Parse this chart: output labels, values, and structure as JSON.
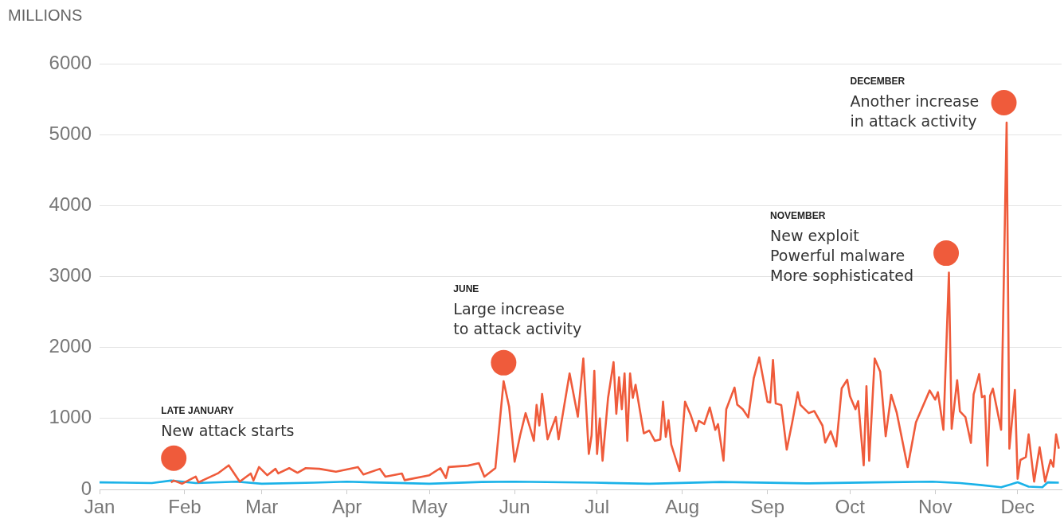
{
  "chart_data": {
    "type": "line",
    "ylabel": "MILLIONS",
    "xlim": [
      "--01-01",
      "--12-17"
    ],
    "ylim": [
      0,
      6000
    ],
    "yticks": [
      0,
      1000,
      2000,
      3000,
      4000,
      5000,
      6000
    ],
    "xticks": [
      {
        "value": "--01-01",
        "label": "Jan"
      },
      {
        "value": "--02-01",
        "label": "Feb"
      },
      {
        "value": "--03-01",
        "label": "Mar"
      },
      {
        "value": "--04-01",
        "label": "Apr"
      },
      {
        "value": "--05-01",
        "label": "May"
      },
      {
        "value": "--06-01",
        "label": "Jun"
      },
      {
        "value": "--07-01",
        "label": "Jul"
      },
      {
        "value": "--08-01",
        "label": "Aug"
      },
      {
        "value": "--09-01",
        "label": "Sep"
      },
      {
        "value": "--10-01",
        "label": "Oct"
      },
      {
        "value": "--11-01",
        "label": "Nov"
      },
      {
        "value": "--12-01",
        "label": "Dec"
      }
    ],
    "grid": "y",
    "legend": false,
    "marker": "none",
    "line_style": "solid",
    "series": [
      {
        "color": "#ef5b3b",
        "x": [
          "--01-27",
          "--01-28",
          "--01-31",
          "--02-05",
          "--02-06",
          "--02-13",
          "--02-17",
          "--02-21",
          "--02-25",
          "--02-26",
          "--02-28",
          "--03-03",
          "--03-06",
          "--03-07",
          "--03-11",
          "--03-14",
          "--03-17",
          "--03-22",
          "--03-28",
          "--04-05",
          "--04-07",
          "--04-13",
          "--04-15",
          "--04-21",
          "--04-22",
          "--05-01",
          "--05-05",
          "--05-07",
          "--05-08",
          "--05-15",
          "--05-19",
          "--05-21",
          "--05-25",
          "--05-28",
          "--05-30",
          "--06-01",
          "--06-03",
          "--06-05",
          "--06-07",
          "--06-08",
          "--06-09",
          "--06-10",
          "--06-11",
          "--06-13",
          "--06-16",
          "--06-17",
          "--06-21",
          "--06-24",
          "--06-26",
          "--06-28",
          "--06-29",
          "--06-30",
          "--07-01",
          "--07-02",
          "--07-03",
          "--07-05",
          "--07-07",
          "--07-08",
          "--07-09",
          "--07-10",
          "--07-11",
          "--07-12",
          "--07-13",
          "--07-14",
          "--07-15",
          "--07-18",
          "--07-20",
          "--07-22",
          "--07-24",
          "--07-25",
          "--07-26",
          "--07-27",
          "--07-28",
          "--07-31",
          "--08-02",
          "--08-04",
          "--08-06",
          "--08-07",
          "--08-09",
          "--08-11",
          "--08-13",
          "--08-14",
          "--08-16",
          "--08-17",
          "--08-20",
          "--08-21",
          "--08-23",
          "--08-25",
          "--08-27",
          "--08-29",
          "--09-01",
          "--09-02",
          "--09-03",
          "--09-04",
          "--09-06",
          "--09-08",
          "--09-10",
          "--09-12",
          "--09-13",
          "--09-16",
          "--09-18",
          "--09-21",
          "--09-22",
          "--09-24",
          "--09-26",
          "--09-28",
          "--09-30",
          "--10-01",
          "--10-03",
          "--10-04",
          "--10-06",
          "--10-07",
          "--10-08",
          "--10-10",
          "--10-12",
          "--10-14",
          "--10-16",
          "--10-18",
          "--10-22",
          "--10-25",
          "--10-30",
          "--11-01",
          "--11-02",
          "--11-04",
          "--11-06",
          "--11-07",
          "--11-09",
          "--11-10",
          "--11-12",
          "--11-14",
          "--11-15",
          "--11-17",
          "--11-18",
          "--11-19",
          "--11-20",
          "--11-21",
          "--11-22",
          "--11-25",
          "--11-27",
          "--11-28",
          "--11-30",
          "--12-01",
          "--12-02",
          "--12-04",
          "--12-05",
          "--12-07",
          "--12-09",
          "--12-11",
          "--12-13",
          "--12-14",
          "--12-15",
          "--12-16"
        ],
        "values": [
          100,
          125,
          80,
          180,
          100,
          225,
          340,
          110,
          225,
          125,
          315,
          200,
          290,
          225,
          300,
          235,
          300,
          290,
          250,
          315,
          210,
          290,
          180,
          225,
          130,
          200,
          300,
          160,
          315,
          335,
          370,
          180,
          300,
          1525,
          1165,
          390,
          760,
          1075,
          820,
          685,
          1190,
          900,
          1345,
          705,
          1020,
          705,
          1635,
          1025,
          1845,
          500,
          760,
          1670,
          500,
          1000,
          405,
          1290,
          1795,
          1065,
          1580,
          1130,
          1635,
          685,
          1635,
          1290,
          1475,
          790,
          830,
          685,
          705,
          1235,
          740,
          975,
          630,
          260,
          1235,
          1055,
          820,
          965,
          920,
          1155,
          840,
          920,
          405,
          1130,
          1435,
          1195,
          1130,
          1015,
          1565,
          1860,
          1235,
          1225,
          1825,
          1210,
          1190,
          560,
          945,
          1370,
          1190,
          1075,
          1105,
          900,
          660,
          820,
          605,
          1425,
          1545,
          1315,
          1130,
          1245,
          340,
          1455,
          405,
          1845,
          1660,
          750,
          1335,
          1085,
          315,
          945,
          1395,
          1265,
          1370,
          840,
          3055,
          855,
          1540,
          1100,
          1020,
          655,
          1340,
          1625,
          1300,
          1320,
          335,
          1320,
          1420,
          840,
          5170,
          575,
          1400,
          150,
          415,
          455,
          775,
          110,
          595,
          110,
          415,
          320,
          775,
          575
        ]
      },
      {
        "color": "#1ab2e8",
        "x": [
          "--01-01",
          "--01-10",
          "--01-20",
          "--01-27",
          "--02-05",
          "--02-20",
          "--03-01",
          "--03-20",
          "--04-01",
          "--04-10",
          "--05-01",
          "--05-20",
          "--06-01",
          "--06-30",
          "--07-20",
          "--08-15",
          "--09-15",
          "--10-10",
          "--10-31",
          "--11-10",
          "--11-18",
          "--11-25",
          "--12-01",
          "--12-05",
          "--12-10",
          "--12-12",
          "--12-16"
        ],
        "values": [
          100,
          95,
          90,
          125,
          90,
          110,
          80,
          95,
          110,
          100,
          80,
          105,
          110,
          95,
          80,
          105,
          85,
          100,
          110,
          90,
          60,
          30,
          100,
          40,
          30,
          100,
          95
        ]
      }
    ],
    "annotations": [
      {
        "text": "LATE JANUARY\nNew attack starts",
        "x": "--01-28",
        "y": 440
      },
      {
        "text": "JUNE\nLarge increase\nto attack activity",
        "x": "--05-28",
        "y": 1785
      },
      {
        "text": "NOVEMBER\nNew exploit\nPowerful malware\nMore sophisticated",
        "x": "--11-05",
        "y": 3330
      },
      {
        "text": "DECEMBER\nAnother increase\nin attack activity",
        "x": "--11-26",
        "y": 5450
      }
    ]
  }
}
